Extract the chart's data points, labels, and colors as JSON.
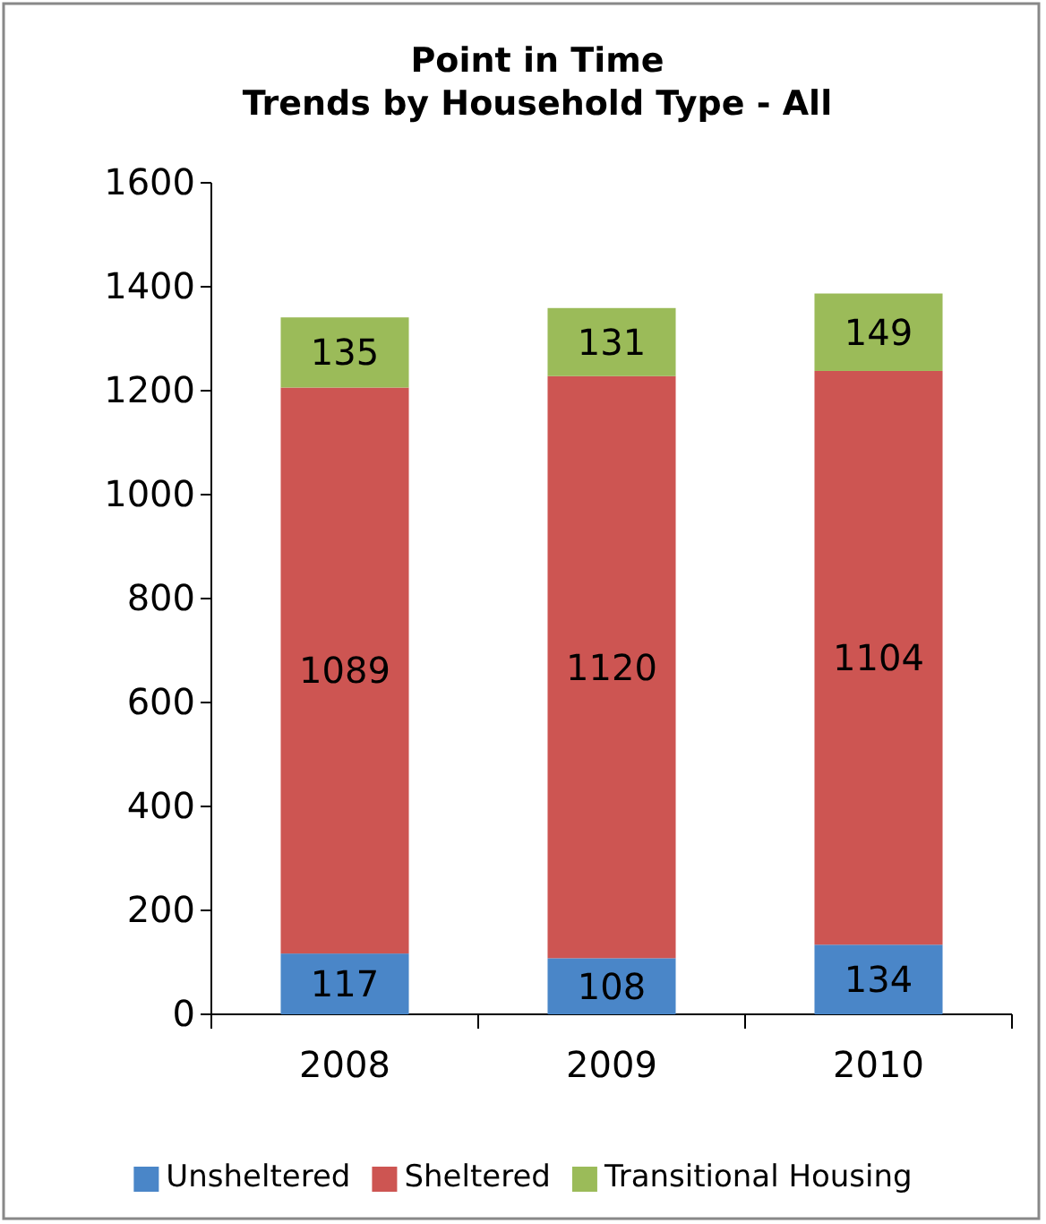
{
  "chart_data": {
    "type": "bar",
    "title": "Point in Time\nTrends by Household Type - All",
    "categories": [
      "2008",
      "2009",
      "2010"
    ],
    "stacked": true,
    "data_labels": true,
    "legend": "bottom",
    "grid": false,
    "ylim": [
      0,
      1600
    ],
    "yticks": [
      0,
      200,
      400,
      600,
      800,
      1000,
      1200,
      1400,
      1600
    ],
    "series": [
      {
        "name": "Unsheltered",
        "color": "#4a86c8",
        "values": [
          117,
          108,
          134
        ]
      },
      {
        "name": "Sheltered",
        "color": "#cd5552",
        "values": [
          1089,
          1120,
          1104
        ]
      },
      {
        "name": "Transitional Housing",
        "color": "#9bbb59",
        "values": [
          135,
          131,
          149
        ]
      }
    ]
  }
}
